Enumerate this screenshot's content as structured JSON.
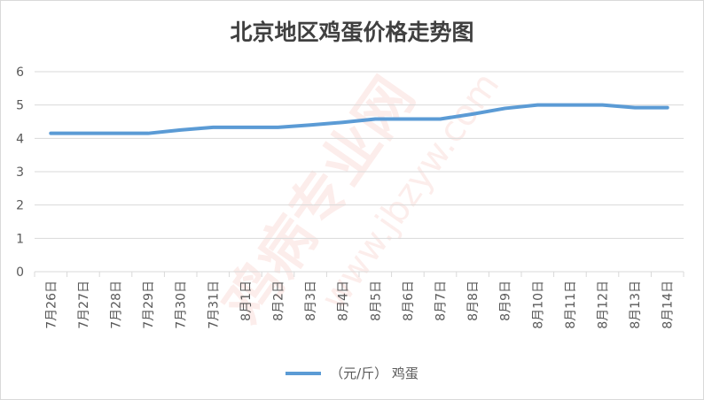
{
  "chart_data": {
    "type": "line",
    "title": "北京地区鸡蛋价格走势图",
    "categories": [
      "7月26日",
      "7月27日",
      "7月28日",
      "7月29日",
      "7月30日",
      "7月31日",
      "8月1日",
      "8月2日",
      "8月3日",
      "8月4日",
      "8月5日",
      "8月6日",
      "8月7日",
      "8月8日",
      "8月9日",
      "8月10日",
      "8月11日",
      "8月12日",
      "8月13日",
      "8月14日"
    ],
    "series": [
      {
        "name": "（元/斤） 鸡蛋",
        "color": "#5b9bd5",
        "values": [
          4.15,
          4.15,
          4.15,
          4.15,
          4.25,
          4.33,
          4.33,
          4.33,
          4.4,
          4.48,
          4.58,
          4.58,
          4.58,
          4.73,
          4.9,
          5.0,
          5.0,
          5.0,
          4.92,
          4.92
        ]
      }
    ],
    "ylim": [
      0,
      6
    ],
    "yticks": [
      0,
      1,
      2,
      3,
      4,
      5,
      6
    ],
    "grid": true,
    "legend_position": "bottom"
  },
  "watermark": {
    "main": "鸡病专业网",
    "url": "www.jbzyw.com",
    "color": "#e8402a"
  }
}
